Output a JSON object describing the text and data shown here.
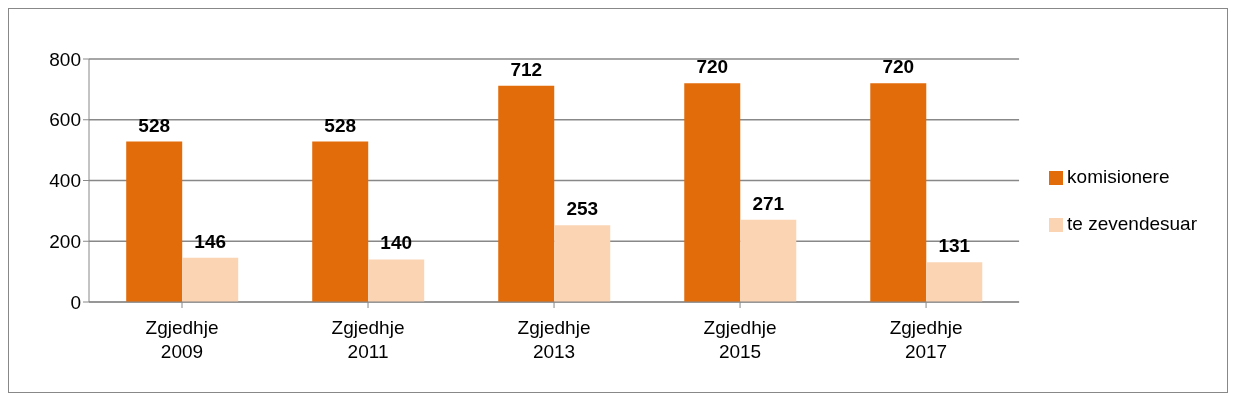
{
  "chart_data": {
    "type": "bar",
    "categories": [
      "Zgjedhje 2009",
      "Zgjedhje 2011",
      "Zgjedhje 2013",
      "Zgjedhje 2015",
      "Zgjedhje 2017"
    ],
    "series": [
      {
        "name": "komisionere",
        "color": "#e36c0a",
        "values": [
          528,
          528,
          712,
          720,
          720
        ]
      },
      {
        "name": "te zevendesuar",
        "color": "#fbd4b4",
        "values": [
          146,
          140,
          253,
          271,
          131
        ]
      }
    ],
    "ylim": [
      0,
      800
    ],
    "yticks": [
      0,
      200,
      400,
      600,
      800
    ],
    "grid": "y",
    "legend": "right",
    "data_labels": true
  }
}
